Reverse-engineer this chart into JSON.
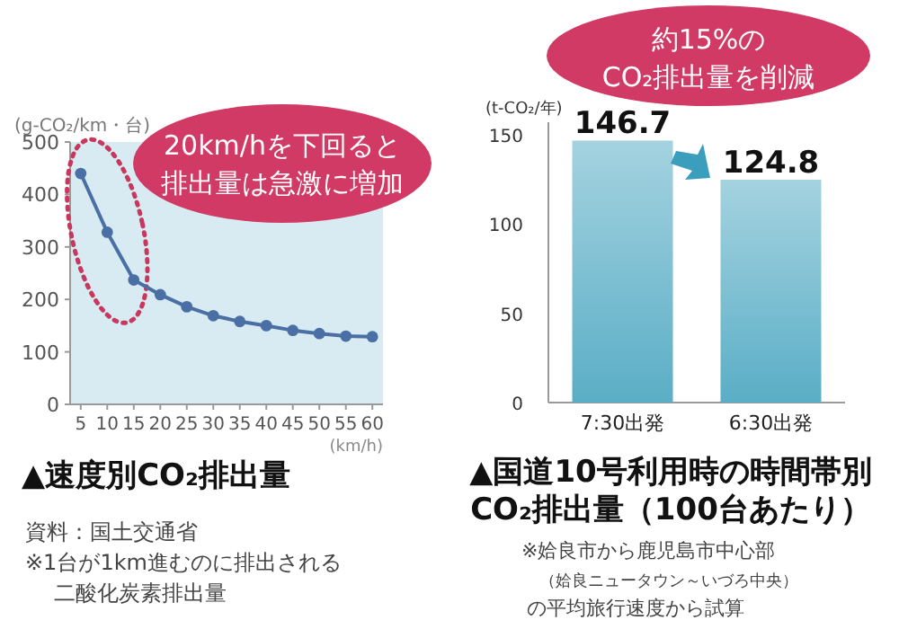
{
  "chart_data": [
    {
      "type": "line",
      "title": "▲速度別CO₂排出量",
      "ylabel": "(g-CO₂/km・台)",
      "xlabel": "(km/h)",
      "x": [
        5,
        10,
        15,
        20,
        25,
        30,
        35,
        40,
        45,
        50,
        55,
        60
      ],
      "series": [
        {
          "color": "#4a6fa5",
          "values": [
            440,
            328,
            237,
            209,
            186,
            169,
            158,
            150,
            141,
            135,
            130,
            129
          ]
        }
      ],
      "xlim": [
        3,
        62
      ],
      "ylim": [
        0,
        500
      ],
      "xticks": [
        5,
        10,
        15,
        20,
        25,
        30,
        35,
        40,
        45,
        50,
        55,
        60
      ],
      "yticks": [
        0,
        100,
        200,
        300,
        400,
        500
      ],
      "marker": "circle",
      "annotations": [
        "20km/hを下回ると",
        "排出量は急激に増加",
        "資料：国土交通省",
        "※1台が1km進むのに排出される",
        "二酸化炭素排出量"
      ]
    },
    {
      "type": "bar",
      "title": "▲国道10号利用時の時間帯別\nCO₂排出量（100台あたり）",
      "ylabel": "(t-CO₂/年)",
      "categories": [
        "7:30出発",
        "6:30出発"
      ],
      "values": [
        146.7,
        124.8
      ],
      "color": "#5aaec6",
      "ylim": [
        0,
        157
      ],
      "yticks": [
        0,
        50,
        100,
        150
      ],
      "data_labels": true,
      "annotations": [
        "約15%の",
        "CO₂排出量を削減",
        "※姶良市から鹿児島市中心部",
        "（姶良ニュータウン～いづろ中央）",
        "の平均旅行速度から試算"
      ]
    }
  ]
}
